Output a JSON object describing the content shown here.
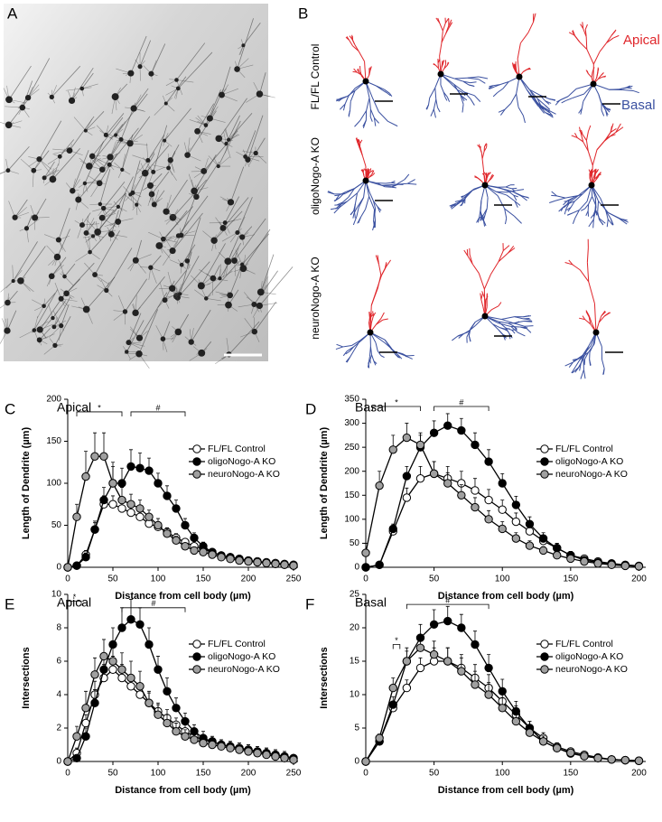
{
  "panels": {
    "a": {
      "label": "A"
    },
    "b": {
      "label": "B",
      "row_labels": [
        "FL/FL Control",
        "oligoNogo-A KO",
        "neuroNogo-A KO"
      ],
      "apical": "Apical",
      "basal": "Basal"
    }
  },
  "chart_data": [
    {
      "type": "line",
      "panel": "C",
      "title": "Apical",
      "x_label": "Distance from cell body (µm)",
      "y_label": "Length of Dendrite (µm)",
      "x": [
        0,
        10,
        20,
        30,
        40,
        50,
        60,
        70,
        80,
        90,
        100,
        110,
        120,
        130,
        140,
        150,
        160,
        170,
        180,
        190,
        200,
        210,
        220,
        230,
        240,
        250
      ],
      "xlim": [
        0,
        255
      ],
      "xticks": [
        0,
        50,
        100,
        150,
        200,
        250
      ],
      "ylim": [
        0,
        200
      ],
      "yticks": [
        0,
        50,
        100,
        150,
        200
      ],
      "series": [
        {
          "name": "FL/FL Control",
          "color": "#ffffff",
          "values": [
            0,
            2,
            15,
            45,
            75,
            75,
            70,
            65,
            60,
            52,
            48,
            42,
            35,
            30,
            25,
            22,
            18,
            14,
            12,
            10,
            8,
            7,
            6,
            5,
            4,
            3
          ],
          "errors": [
            0,
            2,
            5,
            8,
            10,
            10,
            8,
            8,
            7,
            6,
            6,
            5,
            5,
            4,
            4,
            3,
            3,
            3,
            2,
            2,
            2,
            2,
            2,
            2,
            2,
            1
          ]
        },
        {
          "name": "oligoNogo-A KO",
          "color": "#000000",
          "values": [
            0,
            2,
            12,
            45,
            80,
            100,
            100,
            120,
            118,
            115,
            100,
            85,
            70,
            50,
            35,
            25,
            18,
            14,
            12,
            10,
            8,
            6,
            5,
            4,
            3,
            2
          ],
          "errors": [
            0,
            2,
            5,
            10,
            15,
            20,
            18,
            20,
            18,
            15,
            12,
            12,
            10,
            8,
            6,
            5,
            4,
            3,
            3,
            3,
            2,
            2,
            2,
            2,
            2,
            1
          ]
        },
        {
          "name": "neuroNogo-A KO",
          "color": "#a0a0a0",
          "values": [
            0,
            60,
            108,
            132,
            132,
            100,
            80,
            75,
            70,
            60,
            50,
            40,
            32,
            25,
            20,
            18,
            15,
            12,
            10,
            8,
            7,
            6,
            5,
            4,
            3,
            2
          ],
          "errors": [
            0,
            15,
            30,
            28,
            28,
            25,
            15,
            12,
            10,
            8,
            8,
            6,
            5,
            4,
            4,
            3,
            3,
            3,
            2,
            2,
            2,
            2,
            2,
            2,
            2,
            1
          ]
        }
      ],
      "annotations": [
        {
          "text": "*",
          "x": [
            10,
            60
          ],
          "y": 185
        },
        {
          "text": "#",
          "x": [
            70,
            130
          ],
          "y": 185
        }
      ]
    },
    {
      "type": "line",
      "panel": "D",
      "title": "Basal",
      "x_label": "Distance from cell body (µm)",
      "y_label": "Length of Dendrite (µm)",
      "x": [
        0,
        10,
        20,
        30,
        40,
        50,
        60,
        70,
        80,
        90,
        100,
        110,
        120,
        130,
        140,
        150,
        160,
        170,
        180,
        190,
        200
      ],
      "xlim": [
        0,
        205
      ],
      "xticks": [
        0,
        50,
        100,
        150,
        200
      ],
      "ylim": [
        0,
        350
      ],
      "yticks": [
        0,
        50,
        100,
        150,
        200,
        250,
        300,
        350
      ],
      "series": [
        {
          "name": "FL/FL Control",
          "color": "#ffffff",
          "values": [
            0,
            5,
            75,
            145,
            185,
            195,
            185,
            175,
            160,
            140,
            120,
            95,
            75,
            55,
            40,
            25,
            18,
            12,
            8,
            5,
            3
          ],
          "errors": [
            0,
            3,
            10,
            20,
            25,
            25,
            25,
            25,
            25,
            22,
            20,
            18,
            15,
            12,
            10,
            8,
            5,
            4,
            3,
            2,
            2
          ]
        },
        {
          "name": "oligoNogo-A KO",
          "color": "#000000",
          "values": [
            0,
            5,
            80,
            190,
            250,
            280,
            295,
            285,
            255,
            220,
            175,
            130,
            90,
            60,
            40,
            25,
            15,
            10,
            7,
            4,
            2
          ],
          "errors": [
            0,
            3,
            10,
            20,
            25,
            25,
            25,
            25,
            25,
            25,
            20,
            18,
            15,
            12,
            10,
            8,
            5,
            4,
            3,
            2,
            2
          ]
        },
        {
          "name": "neuroNogo-A KO",
          "color": "#a0a0a0",
          "values": [
            30,
            170,
            245,
            270,
            255,
            195,
            175,
            150,
            125,
            100,
            80,
            60,
            45,
            35,
            25,
            18,
            12,
            8,
            5,
            3,
            2
          ],
          "errors": [
            20,
            30,
            30,
            30,
            25,
            25,
            22,
            22,
            20,
            18,
            15,
            12,
            10,
            8,
            6,
            5,
            4,
            3,
            2,
            2,
            2
          ]
        }
      ],
      "annotations": [
        {
          "text": "*",
          "x": [
            5,
            40
          ],
          "y": 335
        },
        {
          "text": "#",
          "x": [
            50,
            90
          ],
          "y": 335
        }
      ]
    },
    {
      "type": "line",
      "panel": "E",
      "title": "Apical",
      "x_label": "Distance from cell body (µm)",
      "y_label": "Intersections",
      "x": [
        0,
        10,
        20,
        30,
        40,
        50,
        60,
        70,
        80,
        90,
        100,
        110,
        120,
        130,
        140,
        150,
        160,
        170,
        180,
        190,
        200,
        210,
        220,
        230,
        240,
        250
      ],
      "xlim": [
        0,
        255
      ],
      "xticks": [
        0,
        50,
        100,
        150,
        200,
        250
      ],
      "ylim": [
        0,
        10
      ],
      "yticks": [
        0,
        2,
        4,
        6,
        8,
        10
      ],
      "series": [
        {
          "name": "FL/FL Control",
          "color": "#ffffff",
          "values": [
            0,
            0.5,
            2.3,
            4,
            5,
            5.5,
            5,
            4.5,
            4,
            3.5,
            3,
            2.6,
            2.2,
            1.8,
            1.5,
            1.3,
            1.2,
            1,
            0.9,
            0.8,
            0.7,
            0.6,
            0.5,
            0.4,
            0.3,
            0.2
          ],
          "errors": [
            0,
            0.3,
            0.5,
            0.8,
            0.8,
            0.8,
            0.8,
            0.7,
            0.6,
            0.6,
            0.5,
            0.5,
            0.4,
            0.4,
            0.4,
            0.3,
            0.3,
            0.3,
            0.3,
            0.3,
            0.3,
            0.3,
            0.3,
            0.3,
            0.3,
            0.2
          ]
        },
        {
          "name": "oligoNogo-A KO",
          "color": "#000000",
          "values": [
            0,
            0.2,
            1.5,
            3.5,
            5.5,
            7,
            8,
            8.5,
            8.2,
            7,
            5.5,
            4.2,
            3.2,
            2.4,
            1.8,
            1.4,
            1.2,
            1,
            0.9,
            0.8,
            0.7,
            0.6,
            0.5,
            0.4,
            0.3,
            0.2
          ],
          "errors": [
            0,
            0.2,
            0.5,
            0.8,
            1,
            1,
            1.2,
            1.2,
            1,
            1,
            0.8,
            0.8,
            0.6,
            0.5,
            0.4,
            0.4,
            0.3,
            0.3,
            0.3,
            0.3,
            0.3,
            0.3,
            0.3,
            0.3,
            0.3,
            0.2
          ]
        },
        {
          "name": "neuroNogo-A KO",
          "color": "#a0a0a0",
          "values": [
            0,
            1.5,
            3.2,
            5.2,
            6.3,
            6,
            5.5,
            5,
            4.5,
            3.5,
            2.8,
            2.3,
            1.8,
            1.5,
            1.3,
            1.1,
            1,
            0.9,
            0.8,
            0.7,
            0.6,
            0.5,
            0.4,
            0.3,
            0.2,
            0.1
          ],
          "errors": [
            0,
            0.6,
            1,
            1,
            1,
            1.2,
            1,
            1,
            0.9,
            0.7,
            0.6,
            0.5,
            0.5,
            0.4,
            0.4,
            0.3,
            0.3,
            0.3,
            0.3,
            0.3,
            0.3,
            0.3,
            0.3,
            0.3,
            0.3,
            0.2
          ]
        }
      ],
      "annotations": [
        {
          "text": "*",
          "x": [
            0,
            15
          ],
          "y": 9.6
        },
        {
          "text": "#",
          "x": [
            60,
            130
          ],
          "y": 9.2
        }
      ]
    },
    {
      "type": "line",
      "panel": "F",
      "title": "Basal",
      "x_label": "Distance from cell body (µm)",
      "y_label": "Intersections",
      "x": [
        0,
        10,
        20,
        30,
        40,
        50,
        60,
        70,
        80,
        90,
        100,
        110,
        120,
        130,
        140,
        150,
        160,
        170,
        180,
        190,
        200
      ],
      "xlim": [
        0,
        205
      ],
      "xticks": [
        0,
        50,
        100,
        150,
        200
      ],
      "ylim": [
        0,
        25
      ],
      "yticks": [
        0,
        5,
        10,
        15,
        20,
        25
      ],
      "series": [
        {
          "name": "FL/FL Control",
          "color": "#ffffff",
          "values": [
            0,
            3,
            8,
            11,
            14,
            15,
            15,
            14,
            12.5,
            11,
            9,
            7,
            5,
            3.5,
            2.2,
            1.5,
            1,
            0.6,
            0.3,
            0.2,
            0.1
          ],
          "errors": [
            0,
            0.5,
            1,
            1.2,
            1.5,
            2,
            2,
            2,
            2,
            2,
            1.5,
            1.3,
            1,
            0.8,
            0.6,
            0.5,
            0.4,
            0.3,
            0.2,
            0.2,
            0.1
          ]
        },
        {
          "name": "oligoNogo-A KO",
          "color": "#000000",
          "values": [
            0,
            3,
            8.5,
            15,
            18.5,
            20.5,
            21,
            20,
            17.5,
            14,
            10.5,
            7.5,
            5,
            3,
            2,
            1.2,
            0.8,
            0.5,
            0.3,
            0.2,
            0.1
          ],
          "errors": [
            0,
            0.5,
            1.2,
            2,
            2,
            2.2,
            2.2,
            2,
            2,
            2,
            1.8,
            1.5,
            1,
            0.8,
            0.6,
            0.5,
            0.4,
            0.3,
            0.2,
            0.2,
            0.1
          ]
        },
        {
          "name": "neuroNogo-A KO",
          "color": "#a0a0a0",
          "values": [
            0,
            3.5,
            11,
            15,
            17,
            16,
            15,
            13.5,
            11.5,
            10,
            8,
            6,
            4.3,
            3,
            2,
            1.3,
            0.8,
            0.5,
            0.3,
            0.2,
            0.1
          ],
          "errors": [
            0,
            0.6,
            1.5,
            1.5,
            2,
            2,
            2,
            2,
            2,
            1.8,
            1.5,
            1.3,
            1,
            0.8,
            0.6,
            0.5,
            0.4,
            0.3,
            0.2,
            0.2,
            0.1
          ]
        }
      ],
      "annotations": [
        {
          "text": "*",
          "x": [
            20,
            25
          ],
          "y": 17.5
        },
        {
          "text": "#",
          "x": [
            30,
            90
          ],
          "y": 23.5
        }
      ]
    }
  ]
}
